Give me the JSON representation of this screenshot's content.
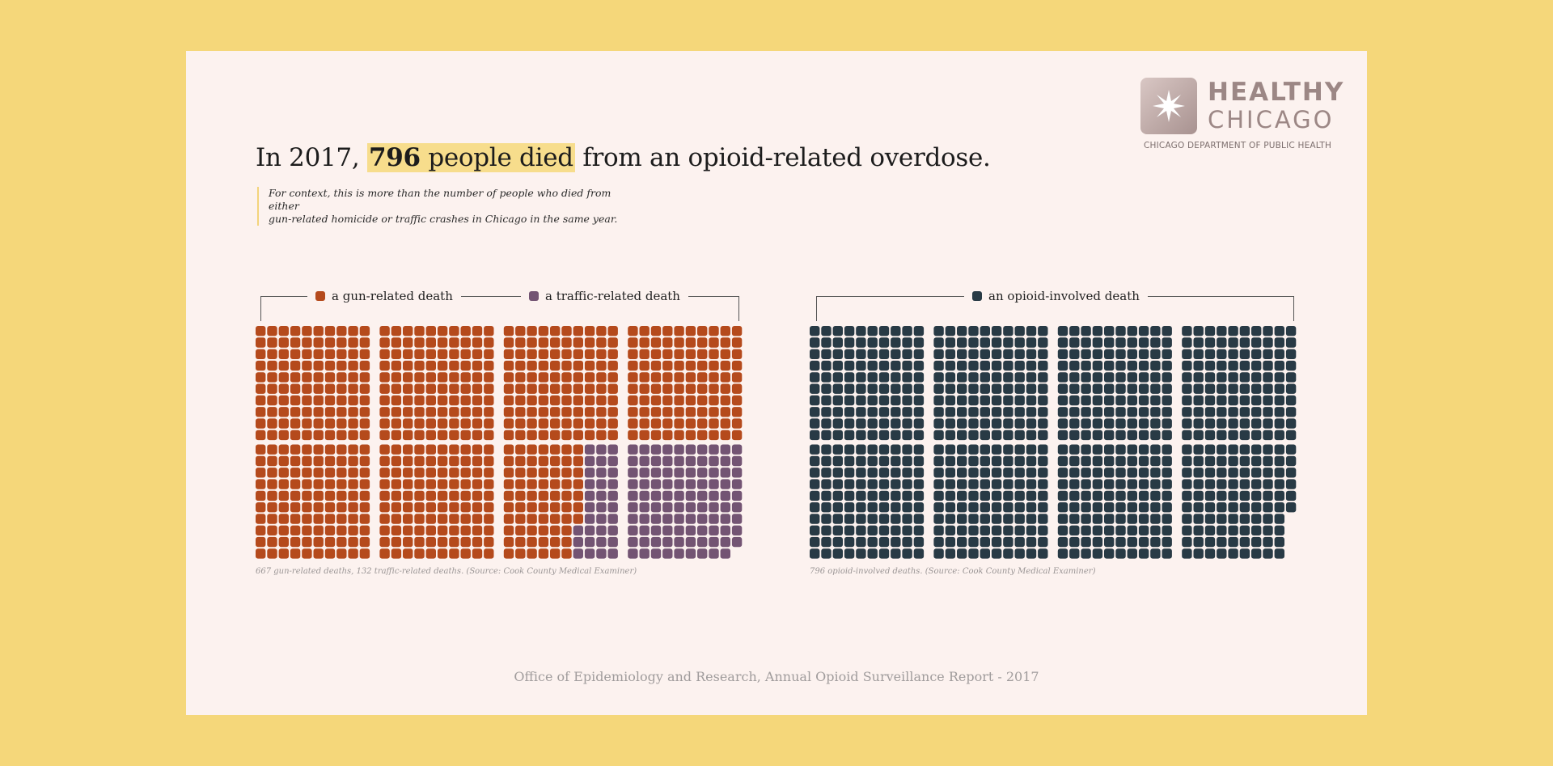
{
  "headline": {
    "prefix": "In 2017, ",
    "number": "796",
    "highlight_rest": " people died",
    "suffix": " from an opioid-related overdose."
  },
  "context": {
    "line1": "For context, this is more than the number of people who died from either",
    "line2": "gun-related homicide or traffic crashes in Chicago in the same year."
  },
  "logo": {
    "word1": "HEALTHY",
    "word2": "CHICAGO",
    "dept": "CHICAGO DEPARTMENT OF PUBLIC HEALTH",
    "icon": "star-icon"
  },
  "colors": {
    "gun": "#b54a1c",
    "traffic": "#735473",
    "opioid": "#283a45",
    "background": "#f5d77a",
    "card": "#fcf2ef",
    "highlight": "#f7dd8c"
  },
  "chart_data": [
    {
      "type": "waffle",
      "unit": "one square = one death",
      "series": [
        {
          "name": "a gun-related death",
          "value": 667
        },
        {
          "name": "a traffic-related death",
          "value": 132
        }
      ],
      "note": "667 gun-related deaths, 132 traffic-related deaths. (Source: Cook County Medical Examiner)"
    },
    {
      "type": "waffle",
      "unit": "one square = one death",
      "series": [
        {
          "name": "an opioid-involved death",
          "value": 796
        }
      ],
      "note": "796 opioid-involved deaths. (Source: Cook County Medical Examiner)"
    }
  ],
  "footer": "Office of Epidemiology and Research, Annual Opioid Surveillance Report - 2017"
}
